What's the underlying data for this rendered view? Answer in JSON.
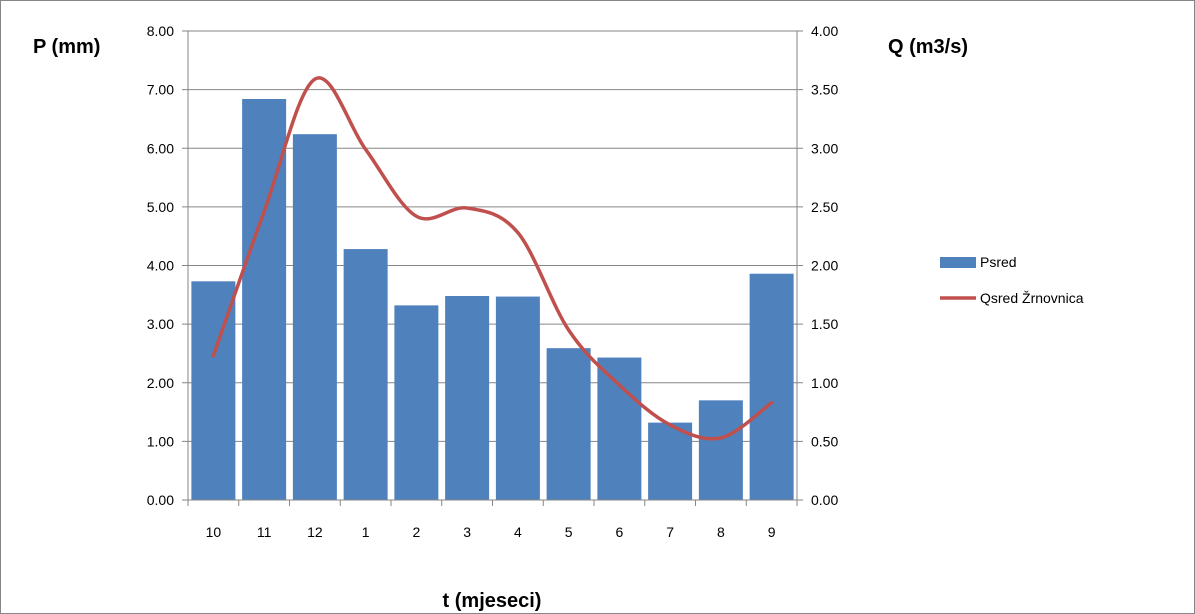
{
  "chart_data": {
    "type": "bar",
    "categories": [
      "10",
      "11",
      "12",
      "1",
      "2",
      "3",
      "4",
      "5",
      "6",
      "7",
      "8",
      "9"
    ],
    "xlabel": "t (mjeseci)",
    "ylabel": "P (mm)",
    "y2label": "Q (m3/s)",
    "ylim": [
      0,
      8
    ],
    "y2lim": [
      0,
      4
    ],
    "yticks": [
      "0.00",
      "1.00",
      "2.00",
      "3.00",
      "4.00",
      "5.00",
      "6.00",
      "7.00",
      "8.00"
    ],
    "y2ticks": [
      "0.00",
      "0.50",
      "1.00",
      "1.50",
      "2.00",
      "2.50",
      "3.00",
      "3.50",
      "4.00"
    ],
    "grid": true,
    "legend_position": "right",
    "series": [
      {
        "name": "Psred",
        "type": "bar",
        "axis": "left",
        "color": "#4F81BD",
        "values": [
          3.73,
          6.84,
          6.24,
          4.28,
          3.32,
          3.48,
          3.47,
          2.59,
          2.43,
          1.32,
          1.7,
          3.86
        ]
      },
      {
        "name": "Qsred Žrnovnica",
        "type": "line",
        "axis": "right",
        "color": "#C0504D",
        "smooth": true,
        "values": [
          1.23,
          2.46,
          3.59,
          2.99,
          2.42,
          2.49,
          2.28,
          1.45,
          0.98,
          0.64,
          0.53,
          0.83
        ]
      }
    ]
  }
}
